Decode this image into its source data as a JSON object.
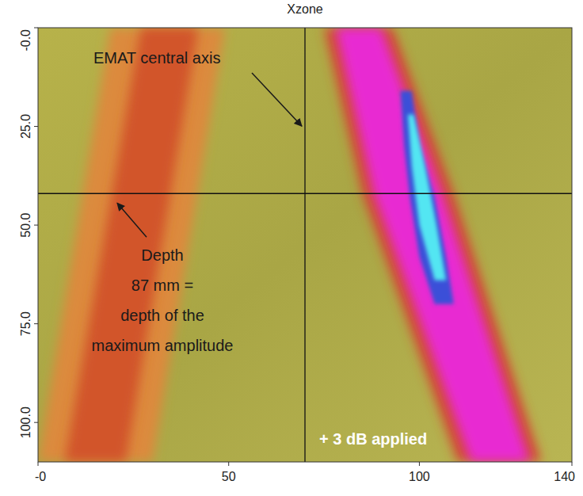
{
  "chart_data": {
    "type": "heatmap",
    "title": "Xzone",
    "xlim": [
      0,
      140
    ],
    "ylim": [
      0,
      110
    ],
    "xticks": [
      {
        "value": 0,
        "label": "-0"
      },
      50,
      100,
      140
    ],
    "yticks": [
      {
        "value": 0,
        "label": "-0.0"
      },
      {
        "value": 25,
        "label": "25.0"
      },
      {
        "value": 50,
        "label": "50.0"
      },
      {
        "value": 75,
        "label": "75.0"
      },
      {
        "value": 100,
        "label": "100.0"
      }
    ],
    "grid": false,
    "areas": [
      {
        "color": "#dc8a3c",
        "depth": [
          0,
          110
        ],
        "left": [
          19,
          0
        ],
        "right": [
          49,
          30
        ]
      },
      {
        "color": "#d2552c",
        "depth": [
          0,
          110
        ],
        "left": [
          27,
          7
        ],
        "right": [
          42,
          23
        ]
      },
      {
        "color": "#d24a30",
        "depth": [
          0,
          42,
          110
        ],
        "left": [
          75,
          85,
          110
        ],
        "right": [
          93,
          109,
          132
        ]
      },
      {
        "color": "#e82ad2",
        "depth": [
          0,
          42,
          110
        ],
        "left": [
          78,
          88,
          113.5
        ],
        "right": [
          90,
          106,
          129
        ]
      },
      {
        "color": "#3a4fd8",
        "depth": [
          16,
          30,
          43,
          58,
          70
        ],
        "left": [
          95,
          96,
          97.5,
          100,
          104
        ],
        "right": [
          98,
          100,
          104,
          107,
          109
        ]
      },
      {
        "color": "#52e6f2",
        "depth": [
          22,
          35,
          50,
          64
        ],
        "left": [
          97,
          98,
          100,
          104
        ],
        "right": [
          98.5,
          101.5,
          104.5,
          107
        ]
      }
    ],
    "cursor_x": 70,
    "cursor_y": 42,
    "annotations": [
      {
        "text": "EMAT central axis"
      },
      {
        "lines": [
          "Depth",
          "87 mm =",
          "depth of the",
          "maximum amplitude"
        ]
      },
      {
        "text": "+ 3 dB applied"
      }
    ]
  }
}
